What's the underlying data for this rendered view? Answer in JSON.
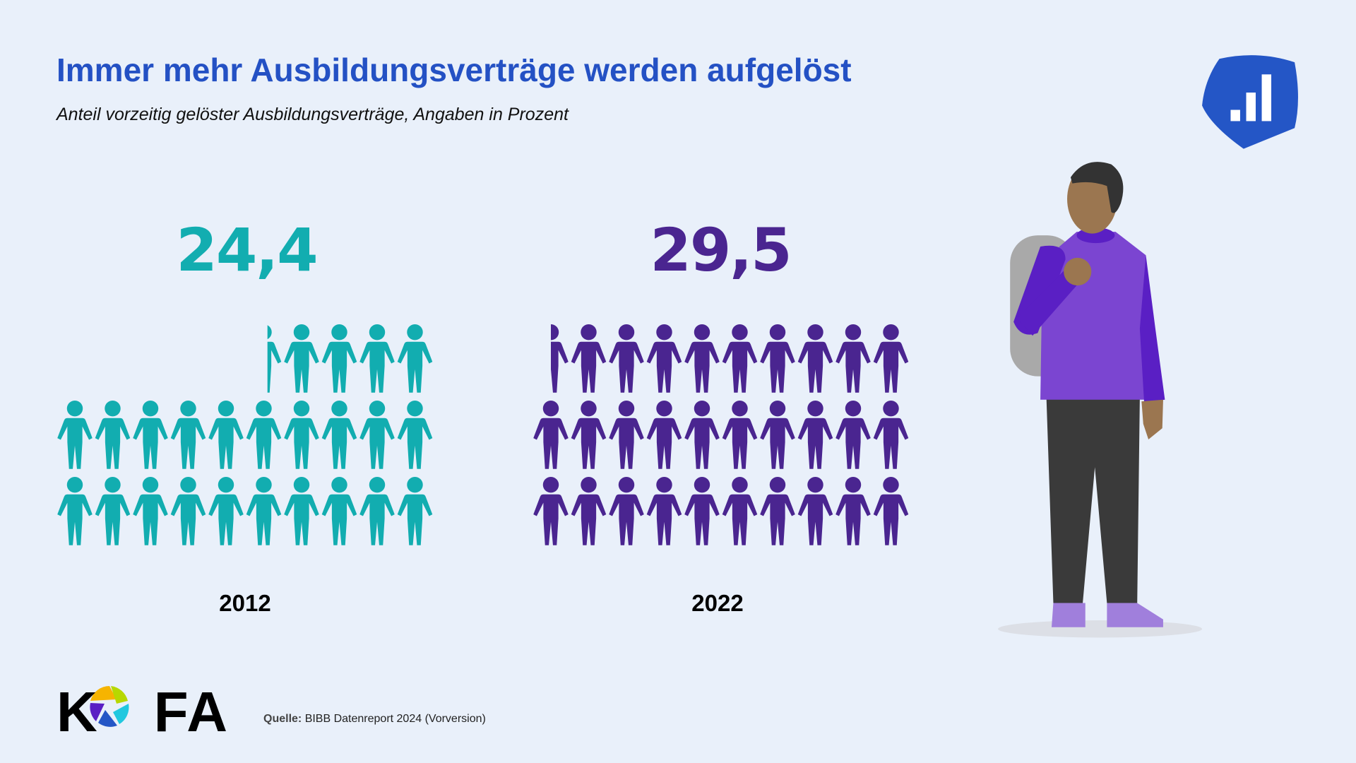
{
  "header": {
    "title": "Immer mehr Ausbildungsverträge werden aufgelöst",
    "subtitle": "Anteil vorzeitig gelöster Ausbildungsverträge, Angaben in Prozent"
  },
  "chart_data": {
    "type": "pictogram",
    "title": "Immer mehr Ausbildungsverträge werden aufgelöst",
    "subtitle": "Anteil vorzeitig gelöster Ausbildungsverträge, Angaben in Prozent",
    "unit": "Prozent",
    "categories": [
      "2012",
      "2022"
    ],
    "values": [
      24.4,
      29.5
    ],
    "value_labels": [
      "24,4",
      "29,5"
    ],
    "colors": [
      "#12adb0",
      "#4a2590"
    ]
  },
  "footer": {
    "logo_text": "KOFA",
    "source_label": "Quelle:",
    "source_text": "BIBB Datenreport 2024 (Vorversion)"
  },
  "colors": {
    "title": "#2451c4",
    "background": "#e9f0fa",
    "brand_shield": "#2456c6"
  },
  "icons": [
    "person-icon",
    "bar-chart-shield-icon",
    "student-illustration"
  ]
}
